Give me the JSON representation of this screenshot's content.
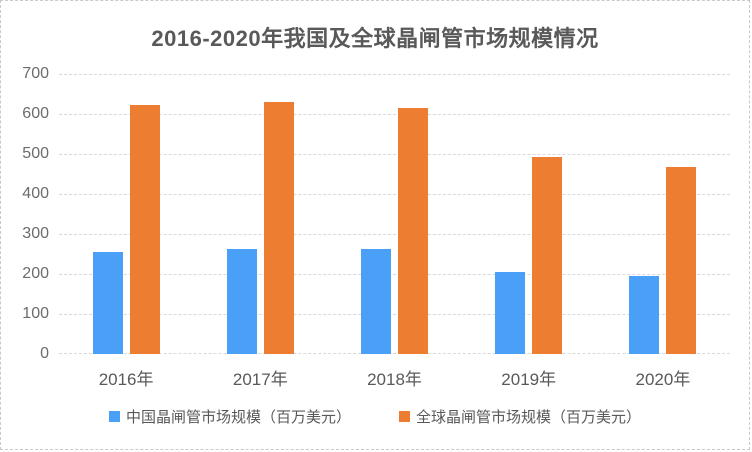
{
  "page": {
    "background": "#ffffff",
    "border_color": "#c9c9c9"
  },
  "chart_data": {
    "type": "bar",
    "title": "2016-2020年我国及全球晶闸管市场规模情况",
    "categories": [
      "2016年",
      "2017年",
      "2018年",
      "2019年",
      "2020年"
    ],
    "series": [
      {
        "name": "中国晶闸管市场规模（百万美元）",
        "color": "#4AA0F6",
        "values": [
          255,
          262,
          263,
          205,
          195
        ]
      },
      {
        "name": "全球晶闸管市场规模（百万美元）",
        "color": "#ED7D31",
        "values": [
          622,
          631,
          614,
          493,
          468
        ]
      }
    ],
    "xlabel": "",
    "ylabel": "",
    "ylim": [
      0,
      700
    ],
    "yticks": [
      0,
      100,
      200,
      300,
      400,
      500,
      600,
      700
    ],
    "grid": "horizontal",
    "gridline_color": "#d9d9d9",
    "axis_text_color": "#595959",
    "legend_position": "bottom"
  }
}
